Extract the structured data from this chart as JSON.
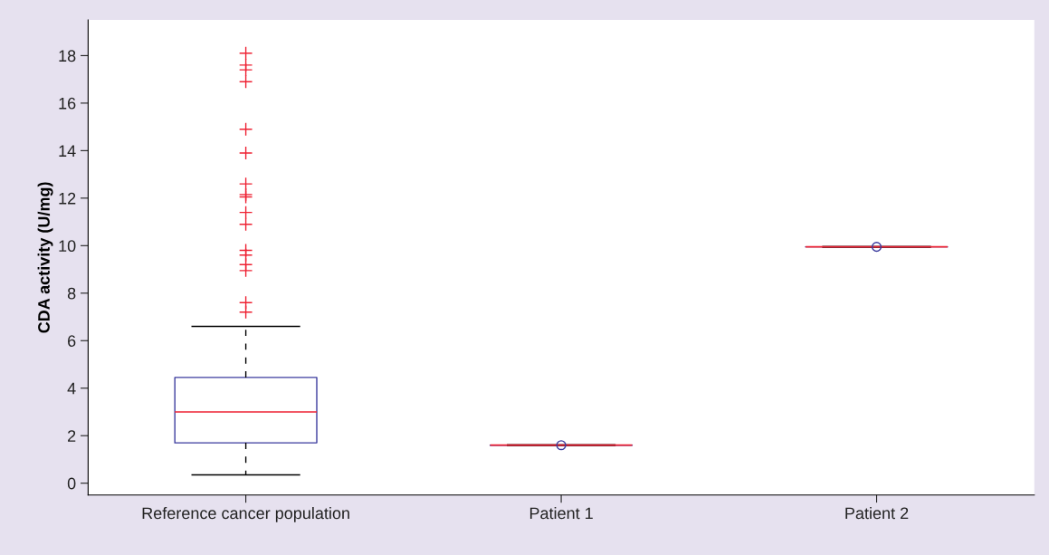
{
  "chart_data": {
    "type": "box",
    "ylabel": "CDA activity (U/mg)",
    "categories": [
      "Reference cancer population",
      "Patient 1",
      "Patient 2"
    ],
    "boxes": [
      {
        "low": 0.35,
        "q1": 1.7,
        "median": 3.0,
        "q3": 4.45,
        "high": 6.6,
        "outliers": [
          18.1,
          17.6,
          17.4,
          16.9,
          14.9,
          13.9,
          12.6,
          12.15,
          12.05,
          11.4,
          10.9,
          9.8,
          9.6,
          9.2,
          8.95,
          7.6,
          7.2
        ]
      },
      {
        "low": 1.6,
        "q1": 1.6,
        "median": 1.6,
        "q3": 1.6,
        "high": 1.6,
        "mean": 1.6
      },
      {
        "low": 9.95,
        "q1": 9.95,
        "median": 9.95,
        "q3": 9.95,
        "high": 9.95,
        "mean": 9.95
      }
    ],
    "color": "#3b3b9e",
    "ylim": [
      -0.5,
      19.5
    ],
    "yticks": [
      0,
      2,
      4,
      6,
      8,
      10,
      12,
      14,
      16,
      18
    ],
    "grid": false
  }
}
